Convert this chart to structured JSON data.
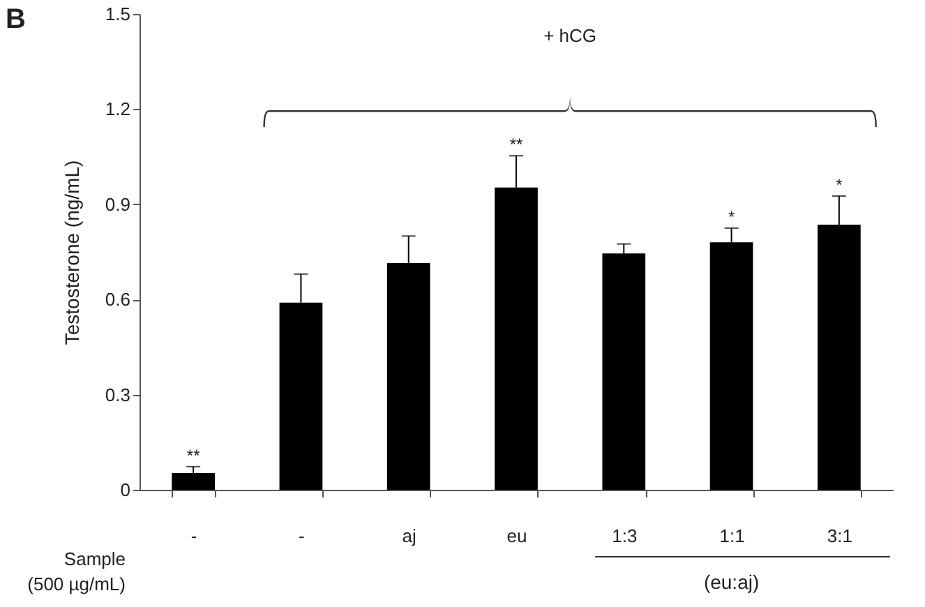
{
  "chart_data": {
    "type": "bar",
    "ylabel": "Testosterone (ng/mL)",
    "categories": [
      "-",
      "-",
      "aj",
      "eu",
      "1:3",
      "1:1",
      "3:1"
    ],
    "values": [
      0.053,
      0.59,
      0.715,
      0.953,
      0.745,
      0.78,
      0.836
    ],
    "errors": [
      0.02,
      0.09,
      0.085,
      0.1,
      0.03,
      0.045,
      0.09
    ],
    "value_labels": [
      "**",
      null,
      null,
      "**",
      null,
      "*",
      "*"
    ],
    "color": "#000000",
    "ylim": [
      0,
      1.5
    ],
    "yticks": [
      0,
      0.3,
      0.6,
      0.9,
      1.2,
      1.5
    ],
    "grid": false,
    "annotations": [
      "B",
      "+ hCG",
      "Sample\n(500 µg/mL)",
      "(eu:aj)"
    ]
  }
}
